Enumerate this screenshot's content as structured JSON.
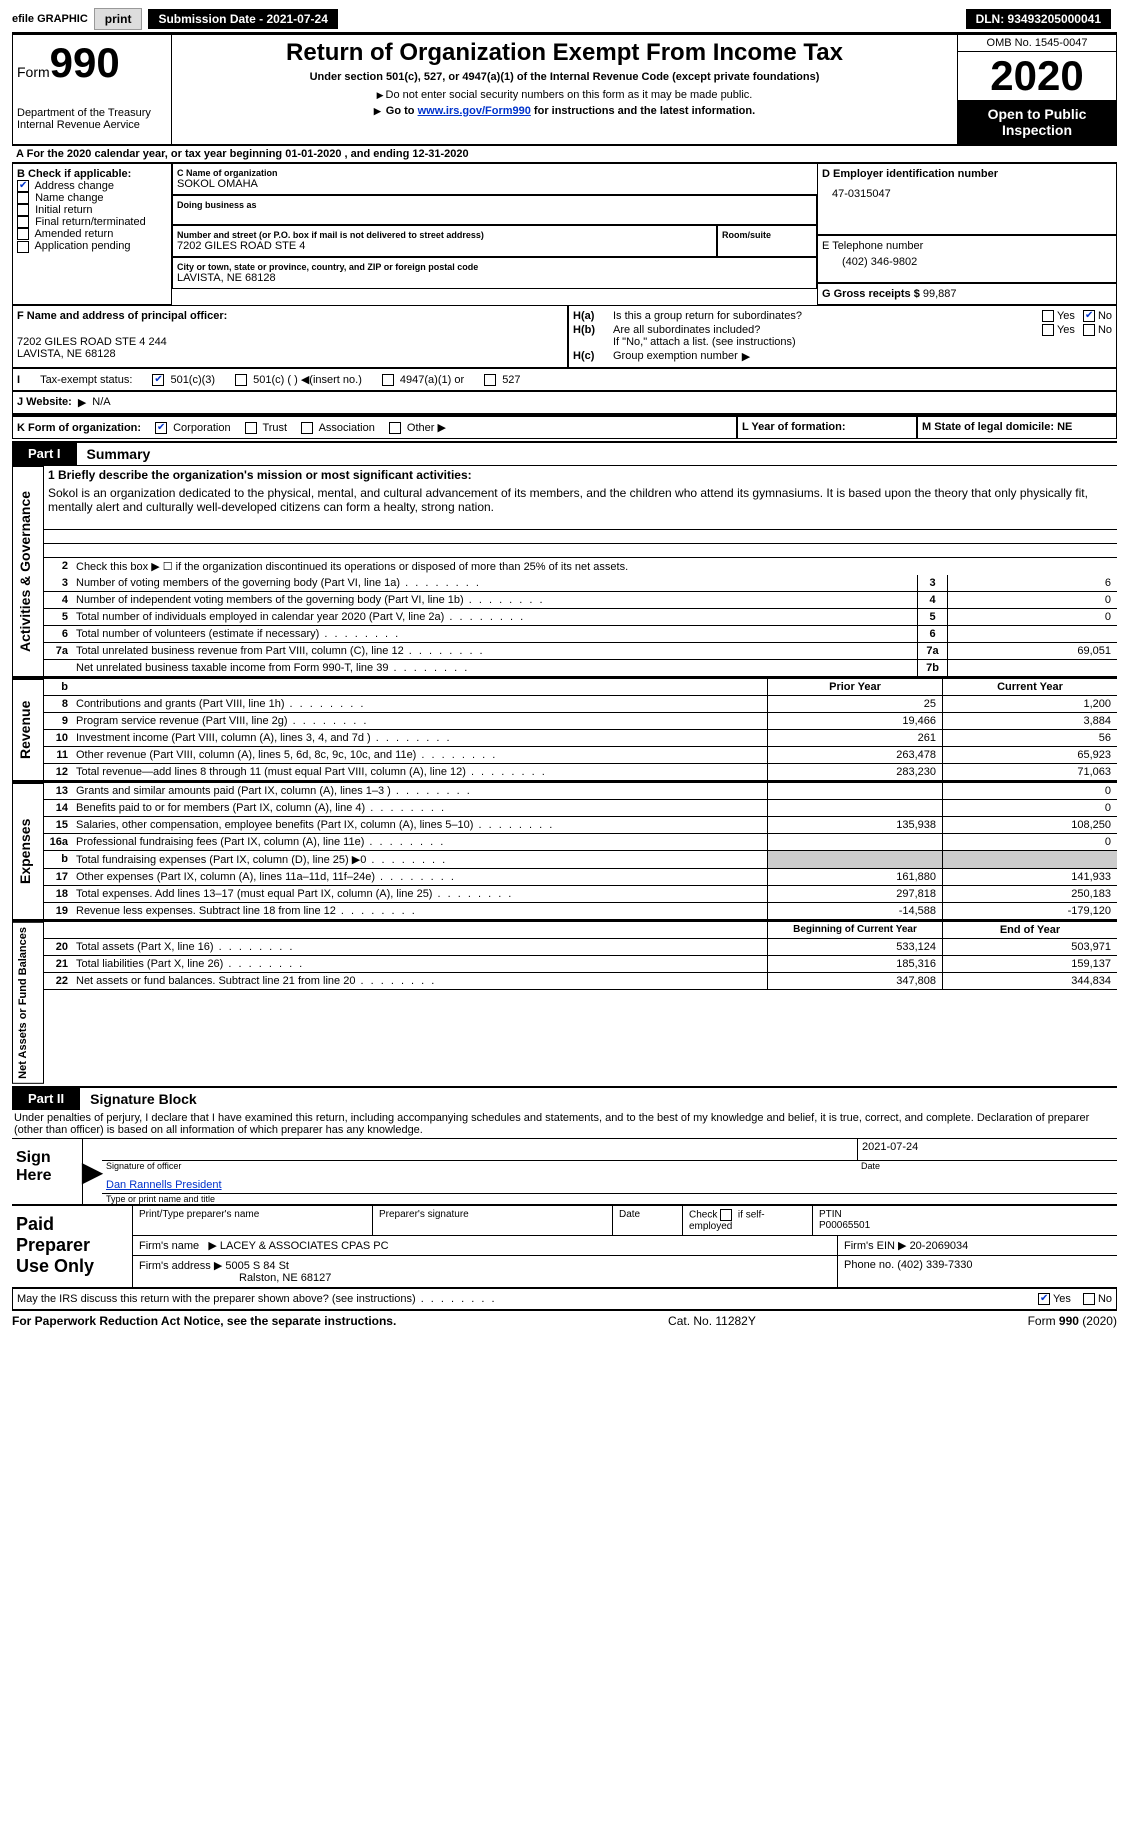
{
  "top": {
    "efile_label": "efile GRAPHIC",
    "print": "print",
    "submission_label": "Submission Date - 2021-07-24",
    "dln_label": "DLN: 93493205000041"
  },
  "header": {
    "form_word": "Form",
    "form_no": "990",
    "dept": "Department of the Treasury\nInternal Revenue Aervice",
    "title": "Return of Organization Exempt From Income Tax",
    "subtitle": "Under section 501(c), 527, or 4947(a)(1) of the Internal Revenue Code (except private foundations)",
    "note1": "Do not enter social security numbers on this form as it may be made public.",
    "note2_pre": "Go to ",
    "note2_link": "www.irs.gov/Form990",
    "note2_post": " for instructions and the latest information.",
    "omb": "OMB No. 1545-0047",
    "year": "2020",
    "open": "Open to Public Inspection"
  },
  "a_line": "For the 2020 calendar year, or tax year beginning 01-01-2020   , and ending 12-31-2020",
  "b": {
    "header": "B Check if applicable:",
    "opts": [
      "Address change",
      "Name change",
      "Initial return",
      "Final return/terminated",
      "Amended return",
      "Application pending"
    ],
    "checked_idx": 0
  },
  "c": {
    "label": "C Name of organization",
    "name": "SOKOL OMAHA",
    "dba_label": "Doing business as",
    "street_label": "Number and street (or P.O. box if mail is not delivered to street address)",
    "street": "7202 GILES ROAD STE 4",
    "room_label": "Room/suite",
    "city_label": "City or town, state or province, country, and ZIP or foreign postal code",
    "city": "LAVISTA, NE  68128"
  },
  "d": {
    "label": "D Employer identification number",
    "value": "47-0315047"
  },
  "e": {
    "label": "E Telephone number",
    "value": "(402) 346-9802"
  },
  "g": {
    "label": "G Gross receipts $",
    "value": "99,887"
  },
  "f": {
    "label": "F Name and address of principal officer:",
    "addr1": "7202 GILES ROAD STE 4 244",
    "addr2": "LAVISTA, NE  68128"
  },
  "h": {
    "a_label": "Is this a group return for subordinates?",
    "a_pre": "H(a)",
    "yes": "Yes",
    "no": "No",
    "b_pre": "H(b)",
    "b_label": "Are all subordinates included?",
    "b_note": "If \"No,\" attach a list. (see instructions)",
    "c_pre": "H(c)",
    "c_label": "Group exemption number"
  },
  "i": {
    "label": "Tax-exempt status:",
    "o1": "501(c)(3)",
    "o2": "501(c) (  )",
    "o2b": "(insert no.)",
    "o3": "4947(a)(1) or",
    "o4": "527"
  },
  "j": {
    "label": "J   Website:",
    "value": "N/A"
  },
  "k": {
    "label": "K Form of organization:",
    "opts": [
      "Corporation",
      "Trust",
      "Association",
      "Other"
    ]
  },
  "l": {
    "label": "L Year of formation:"
  },
  "m": {
    "label": "M State of legal domicile: NE"
  },
  "part1": {
    "tab": "Part I",
    "title": "Summary"
  },
  "vlabels": {
    "gov": "Activities & Governance",
    "rev": "Revenue",
    "exp": "Expenses",
    "net": "Net Assets or Fund Balances"
  },
  "mission": {
    "q": "1  Briefly describe the organization's mission or most significant activities:",
    "text": "Sokol is an organization dedicated to the physical, mental, and cultural advancement of its members, and the children who attend its gymnasiums. It is based upon the theory that only physically fit, mentally alert and culturally well-developed citizens can form a healty, strong nation."
  },
  "gov_rows": [
    {
      "n": "2",
      "t": "Check this box ▶ ☐  if the organization discontinued its operations or disposed of more than 25% of its net assets."
    },
    {
      "n": "3",
      "t": "Number of voting members of the governing body (Part VI, line 1a)",
      "box": "3",
      "v": "6"
    },
    {
      "n": "4",
      "t": "Number of independent voting members of the governing body (Part VI, line 1b)",
      "box": "4",
      "v": "0"
    },
    {
      "n": "5",
      "t": "Total number of individuals employed in calendar year 2020 (Part V, line 2a)",
      "box": "5",
      "v": "0"
    },
    {
      "n": "6",
      "t": "Total number of volunteers (estimate if necessary)",
      "box": "6",
      "v": ""
    },
    {
      "n": "7a",
      "t": "Total unrelated business revenue from Part VIII, column (C), line 12",
      "box": "7a",
      "v": "69,051"
    },
    {
      "n": "",
      "t": "Net unrelated business taxable income from Form 990-T, line 39",
      "box": "7b",
      "v": ""
    }
  ],
  "col_headers": {
    "b": "b",
    "prior": "Prior Year",
    "current": "Current Year",
    "boy": "Beginning of Current Year",
    "eoy": "End of Year"
  },
  "rev_rows": [
    {
      "n": "8",
      "t": "Contributions and grants (Part VIII, line 1h)",
      "p": "25",
      "c": "1,200"
    },
    {
      "n": "9",
      "t": "Program service revenue (Part VIII, line 2g)",
      "p": "19,466",
      "c": "3,884"
    },
    {
      "n": "10",
      "t": "Investment income (Part VIII, column (A), lines 3, 4, and 7d )",
      "p": "261",
      "c": "56"
    },
    {
      "n": "11",
      "t": "Other revenue (Part VIII, column (A), lines 5, 6d, 8c, 9c, 10c, and 11e)",
      "p": "263,478",
      "c": "65,923"
    },
    {
      "n": "12",
      "t": "Total revenue—add lines 8 through 11 (must equal Part VIII, column (A), line 12)",
      "p": "283,230",
      "c": "71,063"
    }
  ],
  "exp_rows": [
    {
      "n": "13",
      "t": "Grants and similar amounts paid (Part IX, column (A), lines 1–3 )",
      "p": "",
      "c": "0"
    },
    {
      "n": "14",
      "t": "Benefits paid to or for members (Part IX, column (A), line 4)",
      "p": "",
      "c": "0"
    },
    {
      "n": "15",
      "t": "Salaries, other compensation, employee benefits (Part IX, column (A), lines 5–10)",
      "p": "135,938",
      "c": "108,250"
    },
    {
      "n": "16a",
      "t": "Professional fundraising fees (Part IX, column (A), line 11e)",
      "p": "",
      "c": "0"
    },
    {
      "n": "b",
      "t": "Total fundraising expenses (Part IX, column (D), line 25) ▶0",
      "p": "GRAY",
      "c": "GRAY"
    },
    {
      "n": "17",
      "t": "Other expenses (Part IX, column (A), lines 11a–11d, 11f–24e)",
      "p": "161,880",
      "c": "141,933"
    },
    {
      "n": "18",
      "t": "Total expenses. Add lines 13–17 (must equal Part IX, column (A), line 25)",
      "p": "297,818",
      "c": "250,183"
    },
    {
      "n": "19",
      "t": "Revenue less expenses. Subtract line 18 from line 12",
      "p": "-14,588",
      "c": "-179,120"
    }
  ],
  "net_rows": [
    {
      "n": "20",
      "t": "Total assets (Part X, line 16)",
      "p": "533,124",
      "c": "503,971"
    },
    {
      "n": "21",
      "t": "Total liabilities (Part X, line 26)",
      "p": "185,316",
      "c": "159,137"
    },
    {
      "n": "22",
      "t": "Net assets or fund balances. Subtract line 21 from line 20",
      "p": "347,808",
      "c": "344,834"
    }
  ],
  "part2": {
    "tab": "Part II",
    "title": "Signature Block"
  },
  "perjury": "Under penalties of perjury, I declare that I have examined this return, including accompanying schedules and statements, and to the best of my knowledge and belief, it is true, correct, and complete. Declaration of preparer (other than officer) is based on all information of which preparer has any knowledge.",
  "sign": {
    "left": "Sign Here",
    "sig_label": "Signature of officer",
    "date": "2021-07-24",
    "date_label": "Date",
    "name": "Dan Rannells  President",
    "name_label": "Type or print name and title"
  },
  "preparer": {
    "left": "Paid Preparer Use Only",
    "h1": "Print/Type preparer's name",
    "h2": "Preparer's signature",
    "h3": "Date",
    "h4a": "Check",
    "h4b": "if self-employed",
    "h5": "PTIN",
    "h5v": "P00065501",
    "firm_label": "Firm's name",
    "firm": "LACEY & ASSOCIATES CPAS PC",
    "ein_label": "Firm's EIN",
    "ein": "20-2069034",
    "addr_label": "Firm's address",
    "addr1": "5005 S 84 St",
    "addr2": "Ralston, NE  68127",
    "phone_label": "Phone no.",
    "phone": "(402) 339-7330"
  },
  "discuss": "May the IRS discuss this return with the preparer shown above? (see instructions)",
  "footer": {
    "l": "For Paperwork Reduction Act Notice, see the separate instructions.",
    "m": "Cat. No. 11282Y",
    "r": "Form 990 (2020)"
  }
}
